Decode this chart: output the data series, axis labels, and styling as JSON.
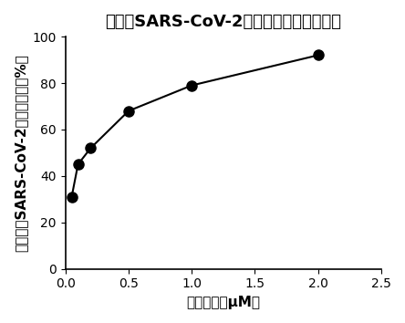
{
  "x": [
    0.05,
    0.1,
    0.2,
    0.5,
    1.0,
    2.0
  ],
  "y": [
    31,
    45,
    52,
    68,
    79,
    92
  ],
  "title": "药物对SARS-CoV-2复制的抑制（细胞内）",
  "xlabel": "药物浓度（μM）",
  "ylabel": "药物抑制SARS-CoV-2复制的效率（%）",
  "xlim": [
    0,
    2.5
  ],
  "ylim": [
    0,
    100
  ],
  "xticks": [
    0.0,
    0.5,
    1.0,
    1.5,
    2.0,
    2.5
  ],
  "yticks": [
    0,
    20,
    40,
    60,
    80,
    100
  ],
  "line_color": "#000000",
  "marker": "o",
  "marker_size": 8,
  "marker_facecolor": "#000000",
  "bg_color": "#ffffff",
  "title_fontsize": 13,
  "label_fontsize": 11,
  "tick_fontsize": 10
}
